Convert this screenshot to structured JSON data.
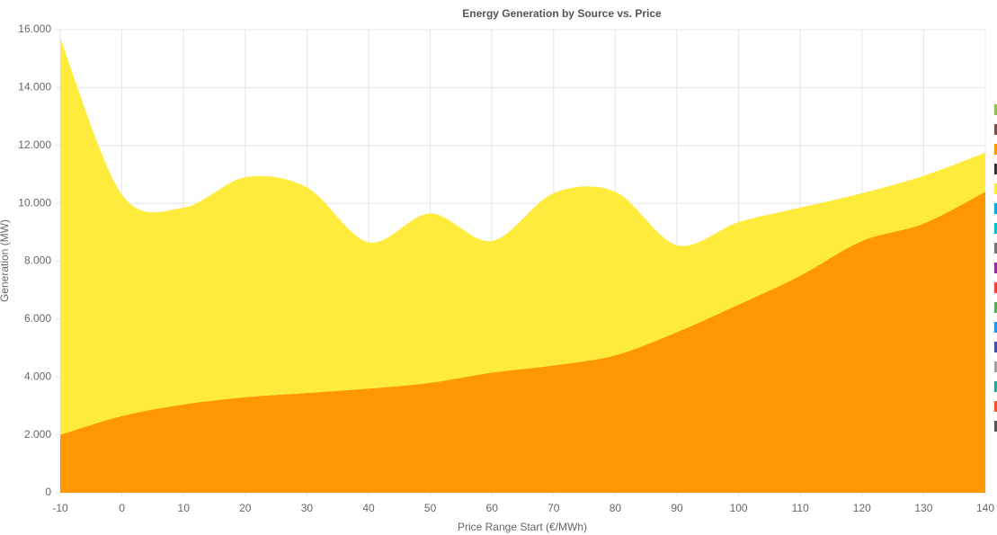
{
  "chart_data": {
    "type": "stacked-area",
    "title": "Energy Generation by Source vs. Price",
    "x_label": "Price Range Start (€/MWh)",
    "y_label": "Generation (MW)",
    "x": [
      -10,
      0,
      10,
      20,
      30,
      40,
      50,
      60,
      70,
      80,
      90,
      100,
      110,
      120,
      130,
      140
    ],
    "series": [
      {
        "color": "#ff9800",
        "values": [
          2000,
          2650,
          3050,
          3300,
          3450,
          3600,
          3800,
          4150,
          4400,
          4750,
          5550,
          6500,
          7500,
          8700,
          9300,
          10400
        ]
      },
      {
        "color": "#ffeb3b",
        "values": [
          13700,
          7650,
          6800,
          7600,
          7100,
          5050,
          5850,
          4550,
          5950,
          5650,
          3000,
          2850,
          2350,
          1650,
          1650,
          1350
        ]
      }
    ],
    "xlim": [
      -10,
      140
    ],
    "xticks": [
      -10,
      0,
      10,
      20,
      30,
      40,
      50,
      60,
      70,
      80,
      90,
      100,
      110,
      120,
      130,
      140
    ],
    "ylim": [
      0,
      16000
    ],
    "yticks": [
      0,
      {
        "value": 2000,
        "label": "2.000"
      },
      {
        "value": 4000,
        "label": "4.000"
      },
      {
        "value": 6000,
        "label": "6.000"
      },
      {
        "value": 8000,
        "label": "8.000"
      },
      {
        "value": 10000,
        "label": "10.000"
      },
      {
        "value": 12000,
        "label": "12.000"
      },
      {
        "value": 14000,
        "label": "14.000"
      },
      {
        "value": 16000,
        "label": "16.000"
      }
    ],
    "grid": true,
    "legend": {
      "position": "right",
      "colors": [
        "#8bc34a",
        "#795548",
        "#ff9800",
        "#333333",
        "#ffeb3b",
        "#03a9f4",
        "#00bcd4",
        "#757575",
        "#9c27b0",
        "#f44336",
        "#4caf50",
        "#2196f3",
        "#3f51b5",
        "#9e9e9e",
        "#26a69a",
        "#ff5722",
        "#555555"
      ]
    }
  }
}
